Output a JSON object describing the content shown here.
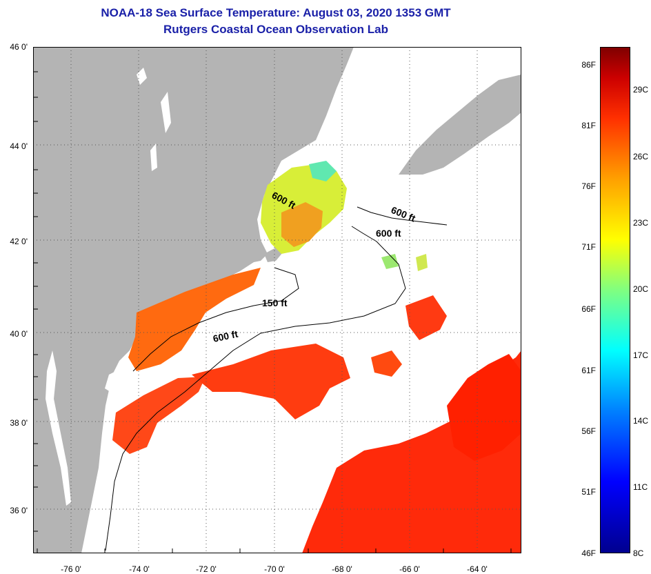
{
  "header": {
    "title_line1": "NOAA-18 Sea Surface Temperature:  August 03, 2020 1353 GMT",
    "title_line2": "Rutgers Coastal Ocean Observation Lab"
  },
  "map": {
    "lat_labels": [
      "46 0'",
      "44 0'",
      "42 0'",
      "40 0'",
      "38 0'",
      "36 0'"
    ],
    "lon_labels": [
      "-76 0'",
      "-74 0'",
      "-72 0'",
      "-70 0'",
      "-68 0'",
      "-66 0'",
      "-64 0'"
    ],
    "contour_labels": [
      "600 ft",
      "600 ft",
      "600 ft",
      "150 ft",
      "600 ft"
    ],
    "colors": {
      "land": "#b4b4b4",
      "cloud": "#ffffff",
      "warm": "#ff2a00",
      "orange": "#ff7a10",
      "green": "#b8e850"
    }
  },
  "colorbar": {
    "fahrenheit": [
      "86F",
      "81F",
      "76F",
      "71F",
      "66F",
      "61F",
      "56F",
      "51F",
      "46F"
    ],
    "celsius": [
      "29C",
      "26C",
      "23C",
      "20C",
      "17C",
      "14C",
      "11C",
      "8C"
    ]
  }
}
